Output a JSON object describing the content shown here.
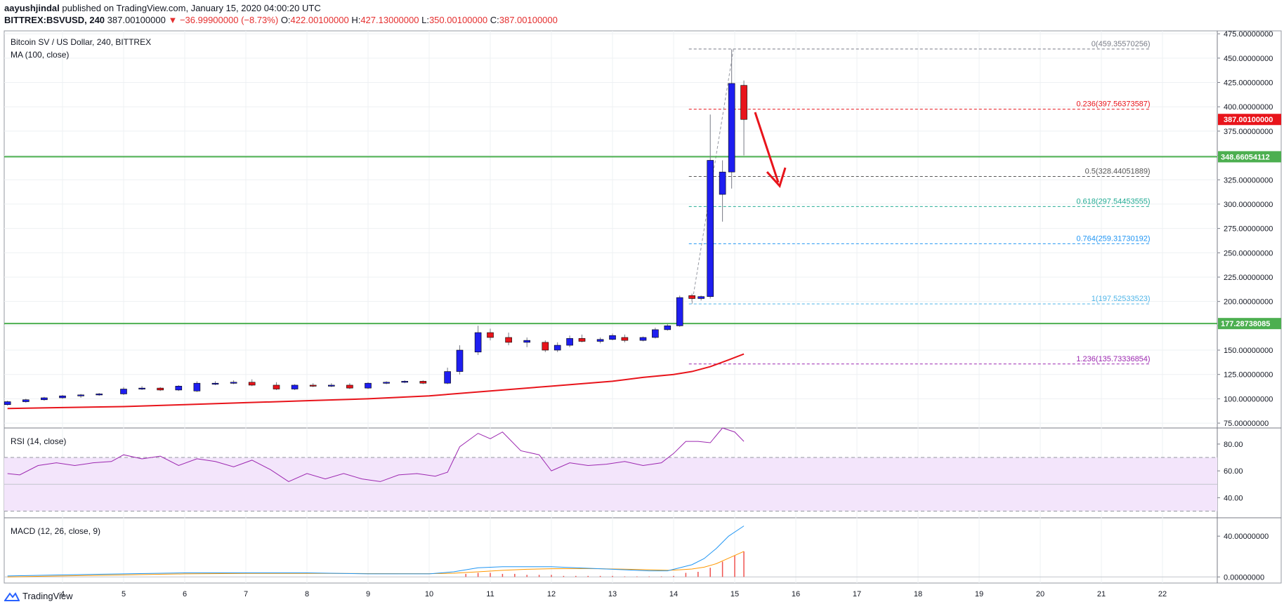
{
  "header": {
    "author": "aayushjindal",
    "published": "published on TradingView.com, January 15, 2020 04:00:20 UTC",
    "symbol": "BITTREX:BSVUSD, 240",
    "last": "387.00100000",
    "arrow": "▼",
    "change": "−36.99900000 (−8.73%)",
    "o_label": "O:",
    "o": "422.00100000",
    "h_label": "H:",
    "h": "427.13000000",
    "l_label": "L:",
    "l": "350.00100000",
    "c_label": "C:",
    "c": "387.00100000"
  },
  "legend": {
    "title": "Bitcoin SV / US Dollar, 240, BITTREX",
    "ma": "MA (100, close)",
    "rsi": "RSI (14, close)",
    "macd": "MACD (12, 26, close, 9)"
  },
  "footer": {
    "brand": "TradingView"
  },
  "colors": {
    "up": "#1e1ef0",
    "down": "#e8141b",
    "ma": "#e8141b",
    "support": "#4caf50",
    "rsi_line": "#9c27b0",
    "rsi_band": "#f3e5fb",
    "macd_line": "#2196f3",
    "signal_line": "#ff9800",
    "hist": "#ef5350"
  },
  "chart_data": {
    "type": "candlestick",
    "x_ticks": [
      "4",
      "5",
      "6",
      "7",
      "8",
      "9",
      "10",
      "11",
      "12",
      "13",
      "14",
      "15",
      "16",
      "17",
      "18",
      "19",
      "20",
      "21",
      "22"
    ],
    "x_tick_days": [
      4,
      5,
      6,
      7,
      8,
      9,
      10,
      11,
      12,
      13,
      14,
      15,
      16,
      17,
      18,
      19,
      20,
      21,
      22
    ],
    "ylim": [
      70,
      478
    ],
    "y_ticks": [
      "75.00000000",
      "100.00000000",
      "125.00000000",
      "150.00000000",
      "175.00000000",
      "200.00000000",
      "225.00000000",
      "250.00000000",
      "275.00000000",
      "300.00000000",
      "325.00000000",
      "350.00000000",
      "375.00000000",
      "400.00000000",
      "425.00000000",
      "450.00000000",
      "475.00000000"
    ],
    "y_tick_values": [
      75,
      100,
      125,
      150,
      175,
      200,
      225,
      250,
      275,
      300,
      325,
      350,
      375,
      400,
      425,
      450,
      475
    ],
    "last_price_label": "387.00100000",
    "last_price": 387.001,
    "support_levels": [
      {
        "value": 348.66054112,
        "label": "348.66054112"
      },
      {
        "value": 177.28738085,
        "label": "177.28738085"
      }
    ],
    "fib_levels": [
      {
        "ratio": "0",
        "value": 459.35570256,
        "label": "0(459.35570256)",
        "color": "#787b86"
      },
      {
        "ratio": "0.236",
        "value": 397.56373587,
        "label": "0.236(397.56373587)",
        "color": "#e8141b"
      },
      {
        "ratio": "0.5",
        "value": 328.44051889,
        "label": "0.5(328.44051889)",
        "color": "#555555"
      },
      {
        "ratio": "0.618",
        "value": 297.54453555,
        "label": "0.618(297.54453555)",
        "color": "#22ab94"
      },
      {
        "ratio": "0.764",
        "value": 259.31730192,
        "label": "0.764(259.31730192)",
        "color": "#2196f3"
      },
      {
        "ratio": "1",
        "value": 197.52533523,
        "label": "1(197.52533523)",
        "color": "#4fb5e8"
      },
      {
        "ratio": "1.236",
        "value": 135.73336854,
        "label": "1.236(135.73336854)",
        "color": "#9c27b0"
      }
    ],
    "candles": [
      {
        "t": 3.1,
        "o": 94,
        "h": 98,
        "l": 93,
        "c": 97
      },
      {
        "t": 3.4,
        "o": 97,
        "h": 100,
        "l": 96,
        "c": 99
      },
      {
        "t": 3.7,
        "o": 99,
        "h": 102,
        "l": 98,
        "c": 101
      },
      {
        "t": 4.0,
        "o": 101,
        "h": 104,
        "l": 100,
        "c": 103
      },
      {
        "t": 4.3,
        "o": 103,
        "h": 105,
        "l": 101,
        "c": 104
      },
      {
        "t": 4.6,
        "o": 104,
        "h": 106,
        "l": 103,
        "c": 105
      },
      {
        "t": 5.0,
        "o": 105,
        "h": 112,
        "l": 104,
        "c": 110
      },
      {
        "t": 5.3,
        "o": 110,
        "h": 113,
        "l": 109,
        "c": 111
      },
      {
        "t": 5.6,
        "o": 111,
        "h": 112,
        "l": 108,
        "c": 109
      },
      {
        "t": 5.9,
        "o": 109,
        "h": 114,
        "l": 108,
        "c": 113
      },
      {
        "t": 6.2,
        "o": 108,
        "h": 118,
        "l": 107,
        "c": 116
      },
      {
        "t": 6.5,
        "o": 116,
        "h": 118,
        "l": 114,
        "c": 116
      },
      {
        "t": 6.8,
        "o": 116,
        "h": 119,
        "l": 115,
        "c": 117
      },
      {
        "t": 7.1,
        "o": 117,
        "h": 120,
        "l": 113,
        "c": 114
      },
      {
        "t": 7.5,
        "o": 114,
        "h": 117,
        "l": 109,
        "c": 110
      },
      {
        "t": 7.8,
        "o": 110,
        "h": 115,
        "l": 109,
        "c": 114
      },
      {
        "t": 8.1,
        "o": 114,
        "h": 116,
        "l": 112,
        "c": 113
      },
      {
        "t": 8.4,
        "o": 113,
        "h": 116,
        "l": 112,
        "c": 114
      },
      {
        "t": 8.7,
        "o": 114,
        "h": 116,
        "l": 110,
        "c": 111
      },
      {
        "t": 9.0,
        "o": 111,
        "h": 117,
        "l": 110,
        "c": 116
      },
      {
        "t": 9.3,
        "o": 116,
        "h": 118,
        "l": 115,
        "c": 117
      },
      {
        "t": 9.6,
        "o": 117,
        "h": 119,
        "l": 116,
        "c": 118
      },
      {
        "t": 9.9,
        "o": 118,
        "h": 119,
        "l": 115,
        "c": 116
      },
      {
        "t": 10.3,
        "o": 116,
        "h": 132,
        "l": 115,
        "c": 128
      },
      {
        "t": 10.5,
        "o": 128,
        "h": 155,
        "l": 125,
        "c": 150
      },
      {
        "t": 10.8,
        "o": 148,
        "h": 175,
        "l": 145,
        "c": 168
      },
      {
        "t": 11.0,
        "o": 168,
        "h": 172,
        "l": 160,
        "c": 163
      },
      {
        "t": 11.3,
        "o": 163,
        "h": 168,
        "l": 155,
        "c": 158
      },
      {
        "t": 11.6,
        "o": 158,
        "h": 163,
        "l": 153,
        "c": 160
      },
      {
        "t": 11.9,
        "o": 158,
        "h": 160,
        "l": 148,
        "c": 150
      },
      {
        "t": 12.1,
        "o": 150,
        "h": 158,
        "l": 148,
        "c": 155
      },
      {
        "t": 12.3,
        "o": 155,
        "h": 165,
        "l": 153,
        "c": 162
      },
      {
        "t": 12.5,
        "o": 162,
        "h": 166,
        "l": 158,
        "c": 159
      },
      {
        "t": 12.8,
        "o": 159,
        "h": 163,
        "l": 157,
        "c": 161
      },
      {
        "t": 13.0,
        "o": 161,
        "h": 167,
        "l": 160,
        "c": 165
      },
      {
        "t": 13.2,
        "o": 163,
        "h": 166,
        "l": 158,
        "c": 160
      },
      {
        "t": 13.5,
        "o": 160,
        "h": 164,
        "l": 159,
        "c": 163
      },
      {
        "t": 13.7,
        "o": 163,
        "h": 173,
        "l": 162,
        "c": 171
      },
      {
        "t": 13.9,
        "o": 171,
        "h": 177,
        "l": 170,
        "c": 175
      },
      {
        "t": 14.1,
        "o": 175,
        "h": 206,
        "l": 174,
        "c": 204
      },
      {
        "t": 14.3,
        "o": 206,
        "h": 208,
        "l": 200,
        "c": 203
      },
      {
        "t": 14.45,
        "o": 203,
        "h": 206,
        "l": 201,
        "c": 205
      },
      {
        "t": 14.6,
        "o": 205,
        "h": 392,
        "l": 203,
        "c": 345
      },
      {
        "t": 14.8,
        "o": 310,
        "h": 345,
        "l": 282,
        "c": 333
      },
      {
        "t": 14.95,
        "o": 333,
        "h": 459,
        "l": 316,
        "c": 424
      },
      {
        "t": 15.15,
        "o": 422,
        "h": 427,
        "l": 350,
        "c": 387
      }
    ],
    "ma_line": {
      "name": "MA (100, close)",
      "t": [
        3.1,
        4,
        5,
        6,
        7,
        8,
        9,
        10,
        11,
        12,
        13,
        13.5,
        14,
        14.3,
        14.6,
        14.9,
        15.15
      ],
      "v": [
        90,
        91,
        92,
        94,
        96,
        98,
        100,
        103,
        108,
        113,
        118,
        122,
        125,
        128,
        133,
        140,
        146
      ]
    },
    "rsi": {
      "ylim": [
        25,
        92
      ],
      "ticks": [
        "40.00",
        "60.00",
        "80.00"
      ],
      "tick_values": [
        40,
        60,
        80
      ],
      "band": [
        30,
        70
      ],
      "mid": 50,
      "t": [
        3.1,
        3.3,
        3.6,
        3.9,
        4.2,
        4.5,
        4.8,
        5.0,
        5.3,
        5.6,
        5.9,
        6.2,
        6.5,
        6.8,
        7.1,
        7.4,
        7.7,
        8.0,
        8.3,
        8.6,
        8.9,
        9.2,
        9.5,
        9.8,
        10.1,
        10.3,
        10.5,
        10.8,
        11.0,
        11.2,
        11.5,
        11.8,
        12.0,
        12.3,
        12.6,
        12.9,
        13.2,
        13.5,
        13.8,
        14.0,
        14.2,
        14.4,
        14.6,
        14.8,
        15.0,
        15.15
      ],
      "v": [
        58,
        57,
        64,
        66,
        64,
        66,
        67,
        72,
        69,
        71,
        64,
        69,
        67,
        63,
        68,
        61,
        52,
        58,
        54,
        58,
        54,
        52,
        57,
        58,
        56,
        59,
        78,
        88,
        84,
        89,
        75,
        72,
        60,
        66,
        64,
        65,
        67,
        64,
        66,
        73,
        82,
        82,
        81,
        92,
        89,
        82
      ]
    },
    "macd": {
      "ylim": [
        -6,
        58
      ],
      "ticks": [
        "0.00000000",
        "40.00000000"
      ],
      "tick_values": [
        0,
        40
      ],
      "t": [
        3.1,
        4,
        5,
        6,
        7,
        8,
        9,
        10,
        10.4,
        10.8,
        11.2,
        11.6,
        12.0,
        12.4,
        12.8,
        13.2,
        13.6,
        13.9,
        14.1,
        14.3,
        14.5,
        14.7,
        14.9,
        15.15
      ],
      "macd": [
        1,
        2,
        3,
        4,
        4,
        4,
        3,
        3,
        5,
        9,
        10,
        10,
        10,
        9,
        8,
        7,
        6,
        6,
        9,
        12,
        18,
        28,
        40,
        50
      ],
      "signal": [
        0,
        1,
        2,
        3,
        3.5,
        3.5,
        3.3,
        3.2,
        3.6,
        5,
        6.5,
        7.5,
        8,
        8.2,
        8,
        7.6,
        7,
        6.5,
        7,
        7.8,
        9.6,
        13,
        18.4,
        25
      ],
      "hist_t": [
        10.6,
        10.8,
        11.0,
        11.2,
        11.4,
        11.6,
        11.8,
        12.0,
        12.2,
        12.4,
        12.6,
        12.8,
        13.0,
        13.2,
        13.4,
        13.6,
        13.8,
        14.0,
        14.2,
        14.4,
        14.6,
        14.8,
        15.0,
        15.15
      ],
      "hist": [
        3,
        4,
        4,
        3,
        3,
        2,
        2,
        2,
        1,
        1,
        1,
        1,
        1,
        0.5,
        0.5,
        0.5,
        0.5,
        1,
        4,
        5,
        9,
        15,
        21,
        25
      ]
    }
  }
}
